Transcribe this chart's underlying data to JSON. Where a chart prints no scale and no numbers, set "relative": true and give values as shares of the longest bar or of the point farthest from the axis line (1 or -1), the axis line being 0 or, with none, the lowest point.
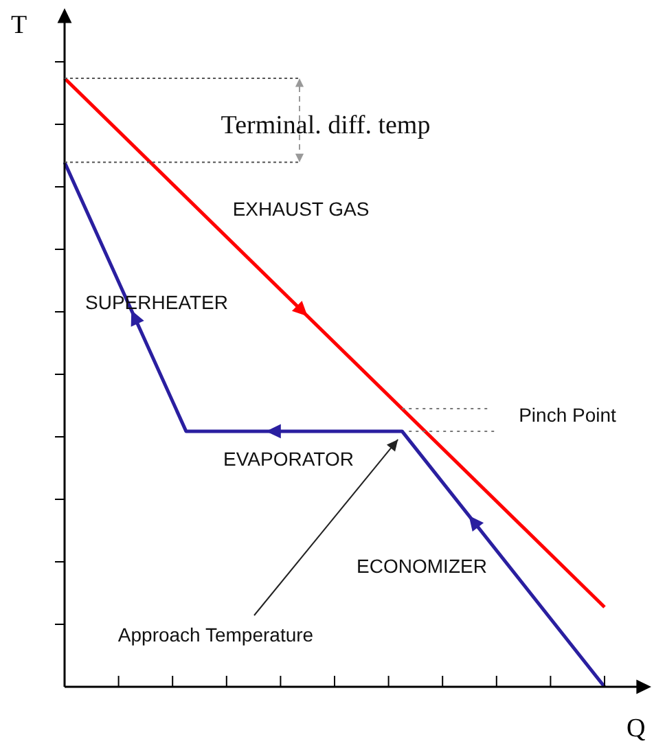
{
  "chart_data": {
    "type": "line",
    "relative": true,
    "xlabel": "Q",
    "ylabel": "T",
    "legend": false,
    "marker": "none",
    "categories": [
      null,
      null,
      null,
      null,
      null,
      null,
      null,
      null,
      null,
      null,
      null,
      null,
      null,
      null,
      null,
      null,
      null,
      null,
      null,
      null,
      null,
      null,
      null,
      null,
      null,
      null,
      null,
      null,
      null,
      null,
      null,
      null,
      null,
      null,
      null,
      null,
      null,
      null,
      null,
      null,
      null
    ],
    "series": [
      {
        "color": "#ff0000",
        "values": [
          1,
          null,
          null,
          null,
          null,
          null,
          null,
          null,
          null,
          null,
          null,
          null,
          null,
          null,
          null,
          null,
          null,
          null,
          null,
          null,
          null,
          null,
          null,
          null,
          null,
          null,
          null,
          null,
          null,
          null,
          null,
          null,
          null,
          null,
          null,
          null,
          null,
          null,
          null,
          null,
          0.131
        ]
      },
      {
        "color": "#2a1fa0",
        "values": [
          0.862,
          null,
          null,
          null,
          null,
          null,
          null,
          null,
          null,
          0.42,
          null,
          null,
          null,
          null,
          null,
          null,
          null,
          null,
          null,
          null,
          null,
          null,
          null,
          null,
          null,
          0.42,
          null,
          null,
          null,
          null,
          null,
          null,
          null,
          null,
          null,
          null,
          null,
          null,
          null,
          null,
          0
        ]
      }
    ],
    "ref_lines": [
      {
        "axis": "y",
        "value": 0.457,
        "color": "#777777",
        "line_style": "dotted"
      },
      {
        "axis": "y",
        "value": 0.42,
        "color": "#777777",
        "line_style": "dotted"
      }
    ],
    "annotations": [
      "Terminal. diff. temp",
      "EXHAUST GAS",
      "SUPERHEATER",
      "EVAPORATOR",
      "ECONOMIZER",
      "Pinch Point",
      "Approach Temperature"
    ]
  }
}
